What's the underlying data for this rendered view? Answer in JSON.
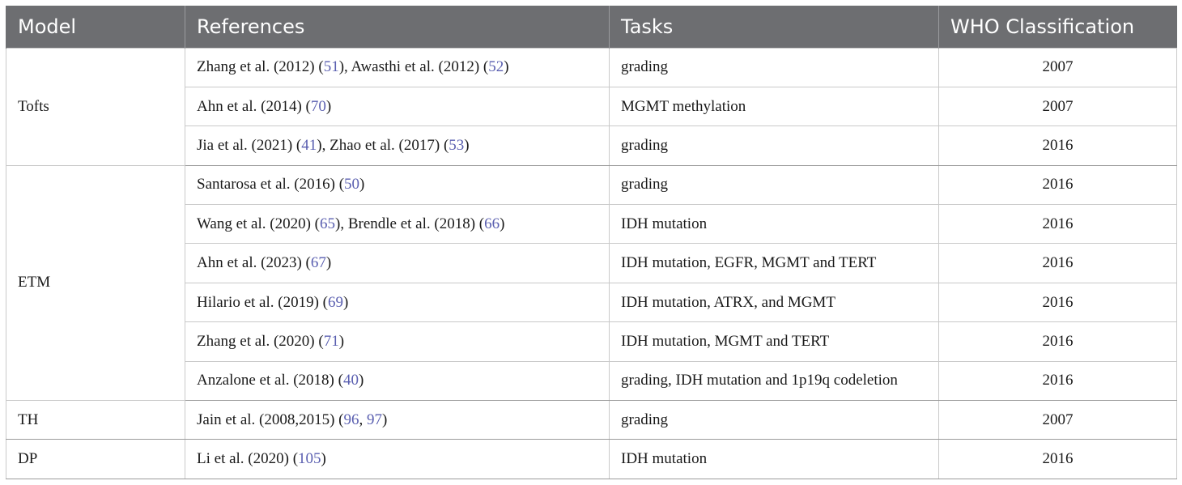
{
  "headers": [
    "Model",
    "References",
    "Tasks",
    "WHO Classification"
  ],
  "rows": [
    {
      "refs": [
        {
          "text": "Zhang et al. (2012) (",
          "link": "51",
          "after": "), "
        },
        {
          "text": "Awasthi et al. (2012) (",
          "link": "52",
          "after": ")"
        }
      ],
      "task": "grading",
      "who": "2007"
    },
    {
      "refs": [
        {
          "text": "Ahn et al. (2014) (",
          "link": "70",
          "after": ")"
        }
      ],
      "task": "MGMT methylation",
      "who": "2007"
    },
    {
      "refs": [
        {
          "text": "Jia et al. (2021) (",
          "link": "41",
          "after": "), "
        },
        {
          "text": "Zhao et al. (2017) (",
          "link": "53",
          "after": ")"
        }
      ],
      "task": "grading",
      "who": "2016"
    },
    {
      "refs": [
        {
          "text": "Santarosa et al. (2016) (",
          "link": "50",
          "after": ")"
        }
      ],
      "task": "grading",
      "who": "2016"
    },
    {
      "refs": [
        {
          "text": "Wang et al. (2020) (",
          "link": "65",
          "after": "), "
        },
        {
          "text": "Brendle et al. (2018) (",
          "link": "66",
          "after": ")"
        }
      ],
      "task": "IDH mutation",
      "who": "2016"
    },
    {
      "refs": [
        {
          "text": "Ahn et al. (2023) (",
          "link": "67",
          "after": ")"
        }
      ],
      "task": "IDH mutation, EGFR, MGMT and TERT",
      "who": "2016"
    },
    {
      "refs": [
        {
          "text": "Hilario et al. (2019) (",
          "link": "69",
          "after": ")"
        }
      ],
      "task": "IDH mutation, ATRX, and MGMT",
      "who": "2016"
    },
    {
      "refs": [
        {
          "text": "Zhang et al. (2020) (",
          "link": "71",
          "after": ")"
        }
      ],
      "task": "IDH mutation, MGMT and TERT",
      "who": "2016"
    },
    {
      "refs": [
        {
          "text": "Anzalone et al. (2018) (",
          "link": "40",
          "after": ")"
        }
      ],
      "task": "grading, IDH mutation and 1p19q codeletion",
      "who": "2016"
    },
    {
      "refs": [
        {
          "text": "Jain et al. (2008,2015) (",
          "link": "96",
          "after": ", "
        },
        {
          "text": "",
          "link": "97",
          "after": ")"
        }
      ],
      "task": "grading",
      "who": "2007"
    },
    {
      "refs": [
        {
          "text": "Li et al. (2020) (",
          "link": "105",
          "after": ")"
        }
      ],
      "task": "IDH mutation",
      "who": "2016"
    }
  ],
  "models": [
    {
      "name": "Tofts",
      "span": 3
    },
    {
      "name": "ETM",
      "span": 6
    },
    {
      "name": "TH",
      "span": 1
    },
    {
      "name": "DP",
      "span": 1
    }
  ],
  "colors": {
    "header_bg": "#6d6e71",
    "link": "#5a5fb0"
  }
}
